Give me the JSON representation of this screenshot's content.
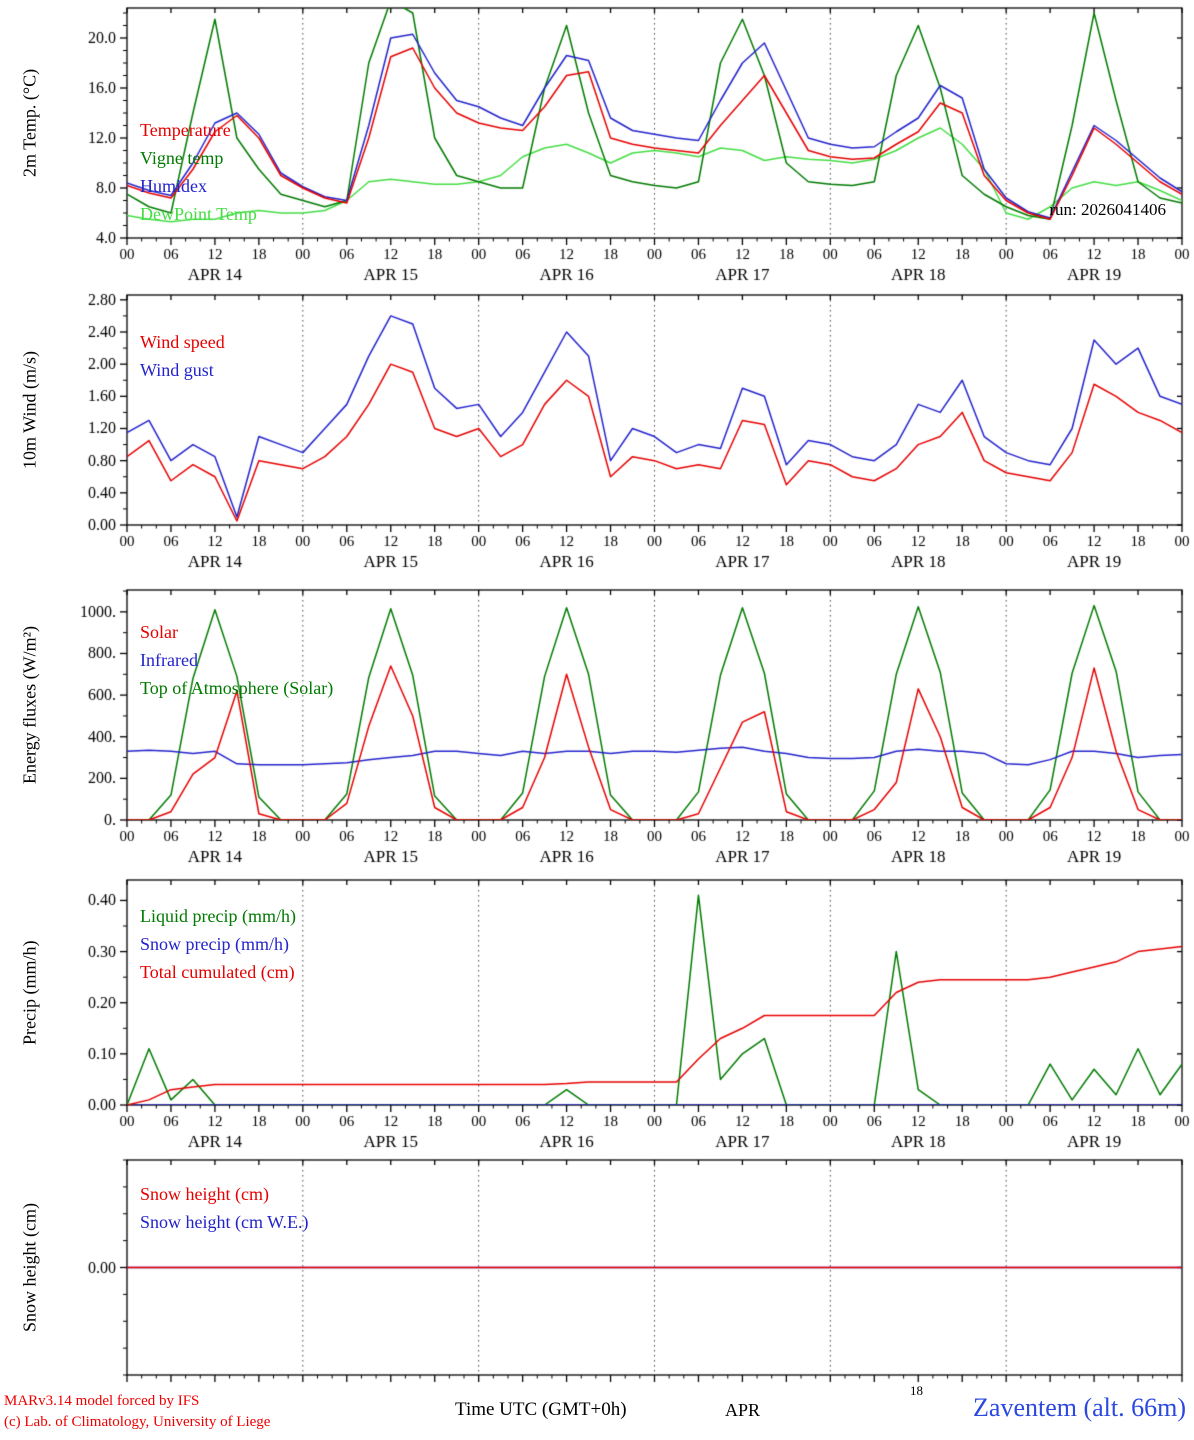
{
  "header": {
    "run_label": "run: 2026041406"
  },
  "footer": {
    "credit_line1": "MARv3.14 model forced by IFS",
    "credit_line2": "(c) Lab. of Climatology, University of Liege",
    "xaxis_title": "Time UTC (GMT+0h)",
    "month_label": "APR",
    "small_day_label": "18",
    "station_label": "Zaventem (alt. 66m)"
  },
  "colors": {
    "red": "#e60000",
    "blue": "#2323cc",
    "dark_green": "#007a00",
    "light_green": "#44dd44",
    "axis_black": "#000000",
    "station_blue": "#2b48e0",
    "credit_red": "#ee0000"
  },
  "time_axis": {
    "start_hour": 0,
    "end_hour": 144,
    "step_hours": 3,
    "tick_interval_hours": 6,
    "grid_interval_hours": 24,
    "hour_tick_labels": [
      "00",
      "06",
      "12",
      "18"
    ],
    "day_labels": [
      "APR 14",
      "APR 15",
      "APR 16",
      "APR 17",
      "APR 18",
      "APR 19"
    ]
  },
  "chart_data": [
    {
      "type": "line",
      "ylabel": "2m Temp. (°C)",
      "ylim": [
        4,
        22.4
      ],
      "yminor": 1,
      "yticks": {
        "values": [
          4,
          8,
          12,
          16,
          20
        ],
        "labels": [
          "4.0",
          "8.0",
          "12.0",
          "16.0",
          "20.0"
        ]
      },
      "legend": [
        {
          "label": "Temperature",
          "color": "#e60000"
        },
        {
          "label": "Vigne temp",
          "color": "#007a00"
        },
        {
          "label": "Humidex",
          "color": "#2323cc"
        },
        {
          "label": "DewPoint Temp",
          "color": "#44dd44"
        }
      ],
      "series": [
        {
          "name": "DewPoint Temp",
          "color": "#44dd44",
          "values": [
            5.8,
            5.5,
            5.3,
            5.5,
            5.5,
            6.0,
            6.2,
            6.0,
            6.0,
            6.2,
            7.0,
            8.5,
            8.7,
            8.5,
            8.3,
            8.3,
            8.5,
            9.0,
            10.5,
            11.2,
            11.5,
            10.8,
            10.0,
            10.8,
            11.0,
            10.8,
            10.5,
            11.2,
            11.0,
            10.2,
            10.5,
            10.3,
            10.2,
            10.0,
            10.3,
            11.0,
            12.0,
            12.8,
            11.5,
            9.5,
            6.0,
            5.5,
            6.5,
            8.0,
            8.5,
            8.2,
            8.5,
            7.8,
            7.0
          ]
        },
        {
          "name": "Vigne temp",
          "color": "#007a00",
          "values": [
            7.5,
            6.5,
            6.0,
            14.0,
            21.5,
            12.0,
            9.5,
            7.5,
            7.0,
            6.5,
            7.0,
            18.0,
            23.0,
            22.0,
            12.0,
            9.0,
            8.5,
            8.0,
            8.0,
            16.0,
            21.0,
            14.0,
            9.0,
            8.5,
            8.2,
            8.0,
            8.5,
            18.0,
            21.5,
            17.0,
            10.0,
            8.5,
            8.3,
            8.2,
            8.5,
            17.0,
            21.0,
            16.0,
            9.0,
            7.5,
            6.5,
            5.8,
            5.5,
            13.0,
            22.0,
            15.0,
            8.5,
            7.2,
            6.8
          ]
        },
        {
          "name": "Humidex",
          "color": "#2323cc",
          "values": [
            8.4,
            7.8,
            7.4,
            10.0,
            13.2,
            14.0,
            12.3,
            9.2,
            8.1,
            7.3,
            7.0,
            13.0,
            20.0,
            20.3,
            17.2,
            15.0,
            14.5,
            13.6,
            13.0,
            16.0,
            18.6,
            18.2,
            13.6,
            12.6,
            12.3,
            12.0,
            11.8,
            15.0,
            18.0,
            19.6,
            15.8,
            12.0,
            11.5,
            11.2,
            11.3,
            12.5,
            13.6,
            16.2,
            15.2,
            9.5,
            7.2,
            6.1,
            5.6,
            9.3,
            13.0,
            11.8,
            10.3,
            8.8,
            7.7
          ]
        },
        {
          "name": "Temperature",
          "color": "#e60000",
          "values": [
            8.2,
            7.6,
            7.2,
            9.5,
            12.5,
            13.8,
            12.0,
            9.0,
            8.0,
            7.2,
            6.8,
            12.0,
            18.5,
            19.2,
            16.0,
            14.0,
            13.2,
            12.8,
            12.6,
            14.5,
            17.0,
            17.3,
            12.0,
            11.5,
            11.2,
            11.0,
            10.8,
            13.0,
            15.0,
            17.0,
            14.0,
            11.0,
            10.5,
            10.3,
            10.4,
            11.5,
            12.5,
            14.8,
            14.0,
            9.0,
            7.0,
            6.0,
            5.5,
            9.0,
            12.8,
            11.5,
            10.0,
            8.5,
            7.5
          ]
        }
      ]
    },
    {
      "type": "line",
      "ylabel": "10m Wind (m/s)",
      "ylim": [
        0,
        2.86
      ],
      "yminor": 0.2,
      "yticks": {
        "values": [
          0,
          0.4,
          0.8,
          1.2,
          1.6,
          2.0,
          2.4,
          2.8
        ],
        "labels": [
          "0.00",
          "0.40",
          "0.80",
          "1.20",
          "1.60",
          "2.00",
          "2.40",
          "2.80"
        ]
      },
      "legend": [
        {
          "label": "Wind speed",
          "color": "#e60000"
        },
        {
          "label": "Wind gust",
          "color": "#2323cc"
        }
      ],
      "series": [
        {
          "name": "Wind gust",
          "color": "#2323cc",
          "values": [
            1.15,
            1.3,
            0.8,
            1.0,
            0.85,
            0.1,
            1.1,
            1.0,
            0.9,
            1.2,
            1.5,
            2.1,
            2.6,
            2.5,
            1.7,
            1.45,
            1.5,
            1.1,
            1.4,
            1.9,
            2.4,
            2.1,
            0.8,
            1.2,
            1.1,
            0.9,
            1.0,
            0.95,
            1.7,
            1.6,
            0.75,
            1.05,
            1.0,
            0.85,
            0.8,
            1.0,
            1.5,
            1.4,
            1.8,
            1.1,
            0.9,
            0.8,
            0.75,
            1.2,
            2.3,
            2.0,
            2.2,
            1.6,
            1.5
          ]
        },
        {
          "name": "Wind speed",
          "color": "#e60000",
          "values": [
            0.85,
            1.05,
            0.55,
            0.75,
            0.6,
            0.05,
            0.8,
            0.75,
            0.7,
            0.85,
            1.1,
            1.5,
            2.0,
            1.9,
            1.2,
            1.1,
            1.2,
            0.85,
            1.0,
            1.5,
            1.8,
            1.6,
            0.6,
            0.85,
            0.8,
            0.7,
            0.75,
            0.7,
            1.3,
            1.25,
            0.5,
            0.8,
            0.75,
            0.6,
            0.55,
            0.7,
            1.0,
            1.1,
            1.4,
            0.8,
            0.65,
            0.6,
            0.55,
            0.9,
            1.75,
            1.6,
            1.4,
            1.3,
            1.15
          ]
        }
      ]
    },
    {
      "type": "line",
      "ylabel": "Energy fluxes (W/m²)",
      "ylim": [
        0,
        1105
      ],
      "yminor": 100,
      "yticks": {
        "values": [
          0,
          200,
          400,
          600,
          800,
          1000
        ],
        "labels": [
          "0.",
          "200.",
          "400.",
          "600.",
          "800.",
          "1000."
        ]
      },
      "legend": [
        {
          "label": "Solar",
          "color": "#e60000"
        },
        {
          "label": "Infrared",
          "color": "#2323cc"
        },
        {
          "label": "Top of Atmosphere (Solar)",
          "color": "#007a00"
        }
      ],
      "series": [
        {
          "name": "Top of Atmosphere (Solar)",
          "color": "#007a00",
          "values": [
            0,
            0,
            120,
            680,
            1010,
            690,
            110,
            0,
            0,
            0,
            125,
            685,
            1015,
            695,
            115,
            0,
            0,
            0,
            130,
            690,
            1020,
            700,
            120,
            0,
            0,
            0,
            135,
            695,
            1020,
            705,
            125,
            0,
            0,
            0,
            140,
            700,
            1025,
            710,
            130,
            0,
            0,
            0,
            145,
            705,
            1030,
            715,
            135,
            0,
            0
          ]
        },
        {
          "name": "Infrared",
          "color": "#2323cc",
          "values": [
            330,
            335,
            330,
            320,
            330,
            270,
            265,
            265,
            265,
            270,
            275,
            290,
            300,
            310,
            330,
            330,
            320,
            310,
            330,
            320,
            330,
            330,
            320,
            330,
            330,
            325,
            335,
            345,
            350,
            330,
            320,
            300,
            295,
            295,
            300,
            330,
            340,
            330,
            330,
            320,
            270,
            265,
            290,
            330,
            330,
            320,
            300,
            310,
            315
          ]
        },
        {
          "name": "Solar",
          "color": "#e60000",
          "values": [
            0,
            0,
            40,
            220,
            300,
            620,
            30,
            0,
            0,
            0,
            80,
            450,
            740,
            500,
            60,
            0,
            0,
            0,
            60,
            300,
            700,
            350,
            50,
            0,
            0,
            0,
            30,
            250,
            470,
            520,
            40,
            0,
            0,
            0,
            50,
            180,
            630,
            400,
            60,
            0,
            0,
            0,
            60,
            300,
            730,
            330,
            50,
            0,
            0
          ]
        }
      ]
    },
    {
      "type": "line",
      "ylabel": "Precip (mm/h)",
      "ylim": [
        0,
        0.44
      ],
      "yminor": 0.05,
      "yticks": {
        "values": [
          0,
          0.1,
          0.2,
          0.3,
          0.4
        ],
        "labels": [
          "0.00",
          "0.10",
          "0.20",
          "0.30",
          "0.40"
        ]
      },
      "legend": [
        {
          "label": "Liquid precip (mm/h)",
          "color": "#007a00"
        },
        {
          "label": "Snow precip (mm/h)",
          "color": "#2323cc"
        },
        {
          "label": "Total cumulated (cm)",
          "color": "#e60000"
        }
      ],
      "series": [
        {
          "name": "Liquid precip",
          "color": "#007a00",
          "values": [
            0,
            0.11,
            0.01,
            0.05,
            0,
            0,
            0,
            0,
            0,
            0,
            0,
            0,
            0,
            0,
            0,
            0,
            0,
            0,
            0,
            0,
            0.03,
            0,
            0,
            0,
            0,
            0,
            0.41,
            0.05,
            0.1,
            0.13,
            0,
            0,
            0,
            0,
            0,
            0.3,
            0.03,
            0,
            0,
            0,
            0,
            0,
            0.08,
            0.01,
            0.07,
            0.02,
            0.11,
            0.02,
            0.08
          ]
        },
        {
          "name": "Snow precip",
          "color": "#2323cc",
          "values": [
            0,
            0,
            0,
            0,
            0,
            0,
            0,
            0,
            0,
            0,
            0,
            0,
            0,
            0,
            0,
            0,
            0,
            0,
            0,
            0,
            0,
            0,
            0,
            0,
            0,
            0,
            0,
            0,
            0,
            0,
            0,
            0,
            0,
            0,
            0,
            0,
            0,
            0,
            0,
            0,
            0,
            0,
            0,
            0,
            0,
            0,
            0,
            0,
            0
          ]
        },
        {
          "name": "Total cumulated",
          "color": "#e60000",
          "values": [
            0,
            0.01,
            0.03,
            0.035,
            0.04,
            0.04,
            0.04,
            0.04,
            0.04,
            0.04,
            0.04,
            0.04,
            0.04,
            0.04,
            0.04,
            0.04,
            0.04,
            0.04,
            0.04,
            0.04,
            0.042,
            0.045,
            0.045,
            0.045,
            0.045,
            0.045,
            0.09,
            0.13,
            0.15,
            0.175,
            0.175,
            0.175,
            0.175,
            0.175,
            0.175,
            0.22,
            0.24,
            0.245,
            0.245,
            0.245,
            0.245,
            0.245,
            0.25,
            0.26,
            0.27,
            0.28,
            0.3,
            0.305,
            0.31
          ]
        }
      ]
    },
    {
      "type": "line",
      "ylabel": "Snow height (cm)",
      "ylim": [
        -1,
        1
      ],
      "yminor": 0.25,
      "yticks": {
        "values": [
          0
        ],
        "labels": [
          "0.00"
        ]
      },
      "legend": [
        {
          "label": "Snow height (cm)",
          "color": "#e60000"
        },
        {
          "label": "Snow height (cm W.E.)",
          "color": "#2323cc"
        }
      ],
      "series": [
        {
          "name": "Snow height (cm W.E.)",
          "color": "#2323cc",
          "values": [
            0,
            0,
            0,
            0,
            0,
            0,
            0,
            0,
            0,
            0,
            0,
            0,
            0,
            0,
            0,
            0,
            0,
            0,
            0,
            0,
            0,
            0,
            0,
            0,
            0,
            0,
            0,
            0,
            0,
            0,
            0,
            0,
            0,
            0,
            0,
            0,
            0,
            0,
            0,
            0,
            0,
            0,
            0,
            0,
            0,
            0,
            0,
            0,
            0
          ]
        },
        {
          "name": "Snow height (cm)",
          "color": "#e60000",
          "values": [
            0,
            0,
            0,
            0,
            0,
            0,
            0,
            0,
            0,
            0,
            0,
            0,
            0,
            0,
            0,
            0,
            0,
            0,
            0,
            0,
            0,
            0,
            0,
            0,
            0,
            0,
            0,
            0,
            0,
            0,
            0,
            0,
            0,
            0,
            0,
            0,
            0,
            0,
            0,
            0,
            0,
            0,
            0,
            0,
            0,
            0,
            0,
            0,
            0
          ]
        }
      ]
    }
  ]
}
